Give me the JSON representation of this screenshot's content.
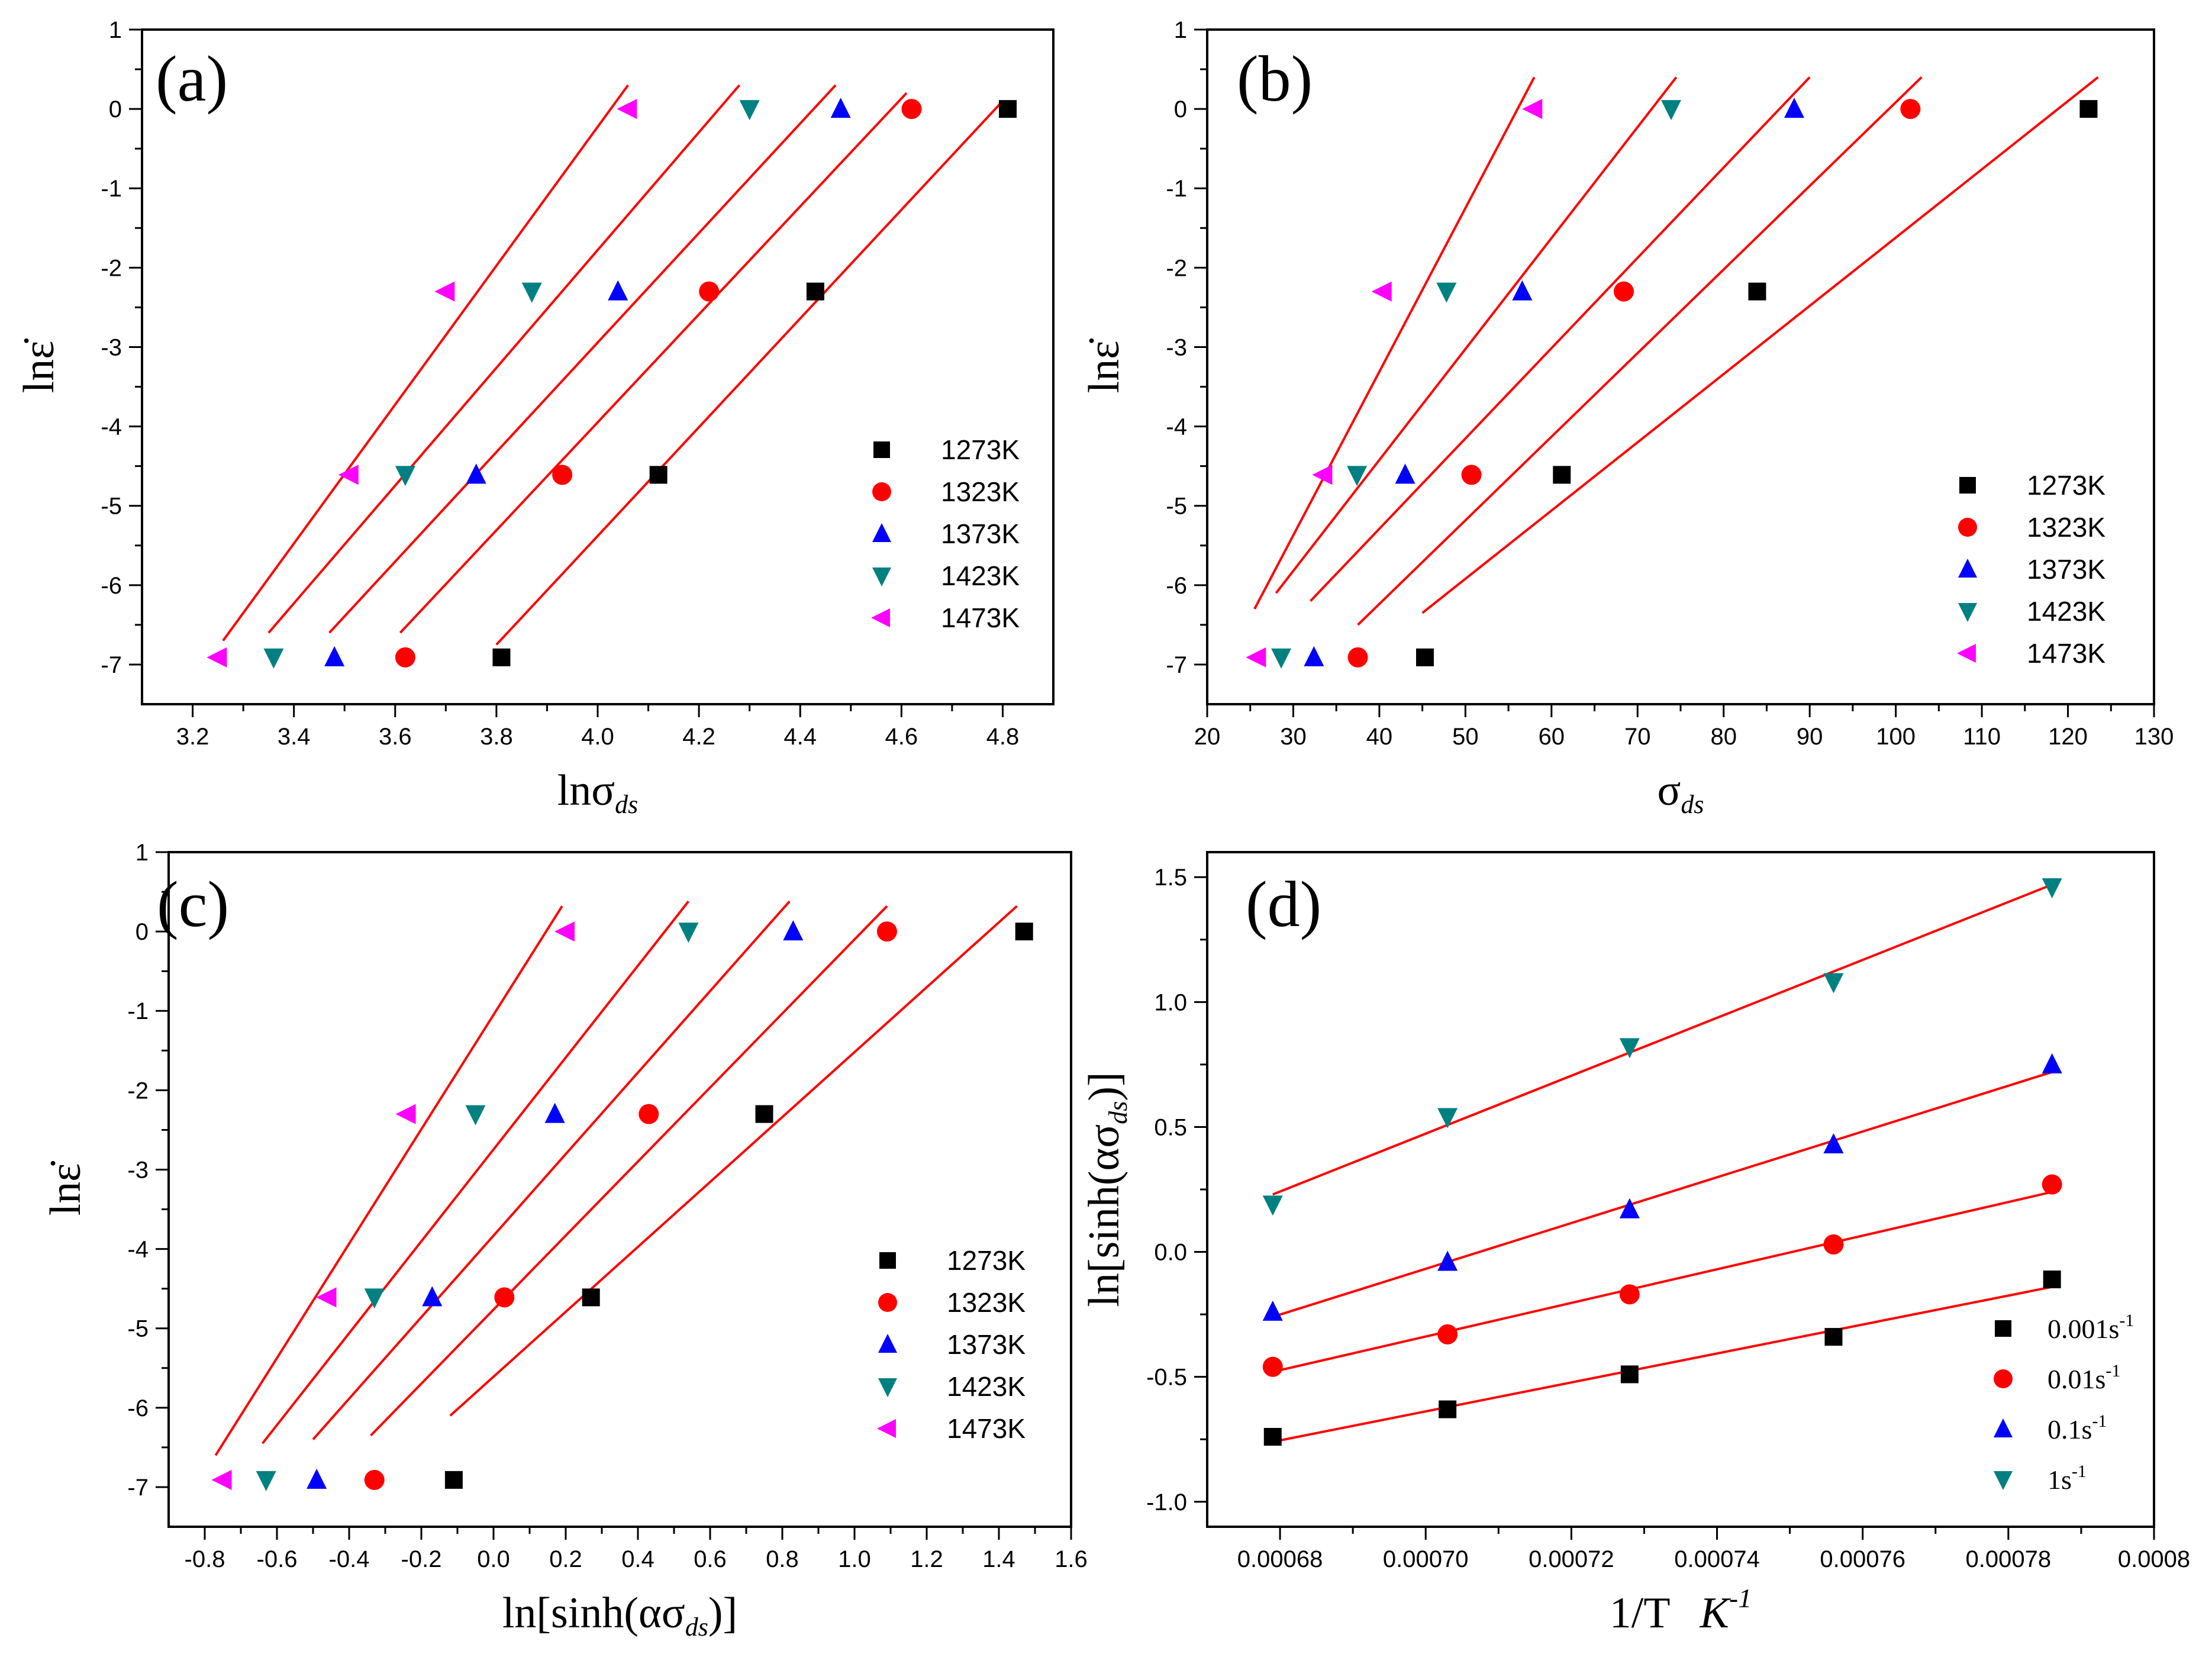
{
  "figure": {
    "colors": {
      "fit_line": "#ff0000",
      "1273K": "#000000",
      "1323K": "#ff0000",
      "1373K": "#0000ff",
      "1423K": "#008080",
      "1473K": "#ff00ff"
    }
  },
  "chart_data": [
    {
      "type": "scatter",
      "panel_label": "(a)",
      "xlabel": "lnσ",
      "xlabel_sub": "ds",
      "ylabel": "lnε̇",
      "xlim": [
        3.1,
        4.9
      ],
      "ylim": [
        -7.5,
        1
      ],
      "xticks": [
        3.2,
        3.4,
        3.6,
        3.8,
        4.0,
        4.2,
        4.4,
        4.6,
        4.8
      ],
      "xtick_labels": [
        "3.2",
        "3.4",
        "3.6",
        "3.8",
        "4.0",
        "4.2",
        "4.4",
        "4.6",
        "4.8"
      ],
      "yticks": [
        1,
        0,
        -1,
        -2,
        -3,
        -4,
        -5,
        -6,
        -7
      ],
      "ytick_labels": [
        "1",
        "0",
        "-1",
        "-2",
        "-3",
        "-4",
        "-5",
        "-6",
        "-7"
      ],
      "legend_position": "bottom-right",
      "series": [
        {
          "name": "1273K",
          "marker": "square",
          "color": "#000000",
          "x": [
            3.81,
            4.12,
            4.43,
            4.81
          ],
          "y": [
            -6.91,
            -4.61,
            -2.3,
            0.0
          ]
        },
        {
          "name": "1323K",
          "marker": "circle",
          "color": "#ff0000",
          "x": [
            3.62,
            3.93,
            4.22,
            4.62
          ],
          "y": [
            -6.91,
            -4.61,
            -2.3,
            0.0
          ]
        },
        {
          "name": "1373K",
          "marker": "triangle-up",
          "color": "#0000ff",
          "x": [
            3.48,
            3.76,
            4.04,
            4.48
          ],
          "y": [
            -6.91,
            -4.61,
            -2.3,
            0.0
          ]
        },
        {
          "name": "1423K",
          "marker": "triangle-down",
          "color": "#008080",
          "x": [
            3.36,
            3.62,
            3.87,
            4.3
          ],
          "y": [
            -6.91,
            -4.61,
            -2.3,
            0.0
          ]
        },
        {
          "name": "1473K",
          "marker": "triangle-left",
          "color": "#ff00ff",
          "x": [
            3.25,
            3.51,
            3.7,
            4.06
          ],
          "y": [
            -6.91,
            -4.61,
            -2.3,
            0.0
          ]
        }
      ],
      "fit_lines": [
        {
          "series": "1273K",
          "x": [
            3.8,
            4.8
          ],
          "y": [
            -6.75,
            0.1
          ]
        },
        {
          "series": "1323K",
          "x": [
            3.61,
            4.61
          ],
          "y": [
            -6.6,
            0.2
          ]
        },
        {
          "series": "1373K",
          "x": [
            3.47,
            4.47
          ],
          "y": [
            -6.6,
            0.3
          ]
        },
        {
          "series": "1423K",
          "x": [
            3.35,
            4.28
          ],
          "y": [
            -6.6,
            0.3
          ]
        },
        {
          "series": "1473K",
          "x": [
            3.26,
            4.06
          ],
          "y": [
            -6.7,
            0.3
          ]
        }
      ]
    },
    {
      "type": "scatter",
      "panel_label": "(b)",
      "xlabel": "σ",
      "xlabel_sub": "ds",
      "ylabel": "lnε̇",
      "xlim": [
        20,
        130
      ],
      "ylim": [
        -7.5,
        1
      ],
      "xticks": [
        20,
        30,
        40,
        50,
        60,
        70,
        80,
        90,
        100,
        110,
        120,
        130
      ],
      "xtick_labels": [
        "20",
        "30",
        "40",
        "50",
        "60",
        "70",
        "80",
        "90",
        "100",
        "110",
        "120",
        "130"
      ],
      "yticks": [
        1,
        0,
        -1,
        -2,
        -3,
        -4,
        -5,
        -6,
        -7
      ],
      "ytick_labels": [
        "1",
        "0",
        "-1",
        "-2",
        "-3",
        "-4",
        "-5",
        "-6",
        "-7"
      ],
      "legend_position": "bottom-right",
      "series": [
        {
          "name": "1273K",
          "marker": "square",
          "color": "#000000",
          "x": [
            45.3,
            61.2,
            83.9,
            122.4
          ],
          "y": [
            -6.91,
            -4.61,
            -2.3,
            0.0
          ]
        },
        {
          "name": "1323K",
          "marker": "circle",
          "color": "#ff0000",
          "x": [
            37.5,
            50.7,
            68.4,
            101.7
          ],
          "y": [
            -6.91,
            -4.61,
            -2.3,
            0.0
          ]
        },
        {
          "name": "1373K",
          "marker": "triangle-up",
          "color": "#0000ff",
          "x": [
            32.4,
            43.0,
            56.6,
            88.2
          ],
          "y": [
            -6.91,
            -4.61,
            -2.3,
            0.0
          ]
        },
        {
          "name": "1423K",
          "marker": "triangle-down",
          "color": "#008080",
          "x": [
            28.6,
            37.4,
            47.8,
            73.9
          ],
          "y": [
            -6.91,
            -4.61,
            -2.3,
            0.0
          ]
        },
        {
          "name": "1473K",
          "marker": "triangle-left",
          "color": "#ff00ff",
          "x": [
            25.8,
            33.5,
            40.4,
            57.9
          ],
          "y": [
            -6.91,
            -4.61,
            -2.3,
            0.0
          ]
        }
      ],
      "fit_lines": [
        {
          "series": "1273K",
          "x": [
            45.0,
            123.5
          ],
          "y": [
            -6.35,
            0.4
          ]
        },
        {
          "series": "1323K",
          "x": [
            37.5,
            103.0
          ],
          "y": [
            -6.5,
            0.4
          ]
        },
        {
          "name": "1373K",
          "series": "1373K",
          "x": [
            32.0,
            90.0
          ],
          "y": [
            -6.2,
            0.4
          ]
        },
        {
          "series": "1423K",
          "x": [
            28.0,
            74.5
          ],
          "y": [
            -6.1,
            0.4
          ]
        },
        {
          "series": "1473K",
          "x": [
            25.5,
            58.0
          ],
          "y": [
            -6.3,
            0.4
          ]
        }
      ]
    },
    {
      "type": "scatter",
      "panel_label": "(c)",
      "xlabel": "ln[sinh(ασ",
      "xlabel_sub": "ds",
      "xlabel_end": ")]",
      "ylabel": "lnε̇",
      "xlim": [
        -0.9,
        1.6
      ],
      "ylim": [
        -7.5,
        1
      ],
      "xticks": [
        -0.8,
        -0.6,
        -0.4,
        -0.2,
        0.0,
        0.2,
        0.4,
        0.6,
        0.8,
        1.0,
        1.2,
        1.4,
        1.6
      ],
      "xtick_labels": [
        "-0.8",
        "-0.6",
        "-0.4",
        "-0.2",
        "0.0",
        "0.2",
        "0.4",
        "0.6",
        "0.8",
        "1.0",
        "1.2",
        "1.4",
        "1.6"
      ],
      "yticks": [
        1,
        0,
        -1,
        -2,
        -3,
        -4,
        -5,
        -6,
        -7
      ],
      "ytick_labels": [
        "1",
        "0",
        "-1",
        "-2",
        "-3",
        "-4",
        "-5",
        "-6",
        "-7"
      ],
      "legend_position": "bottom-right",
      "series": [
        {
          "name": "1273K",
          "marker": "square",
          "color": "#000000",
          "x": [
            -0.11,
            0.27,
            0.75,
            1.47
          ],
          "y": [
            -6.91,
            -4.61,
            -2.3,
            0.0
          ]
        },
        {
          "name": "1323K",
          "marker": "circle",
          "color": "#ff0000",
          "x": [
            -0.33,
            0.03,
            0.43,
            1.09
          ],
          "y": [
            -6.91,
            -4.61,
            -2.3,
            0.0
          ]
        },
        {
          "name": "1373K",
          "marker": "triangle-up",
          "color": "#0000ff",
          "x": [
            -0.49,
            -0.17,
            0.17,
            0.83
          ],
          "y": [
            -6.91,
            -4.61,
            -2.3,
            0.0
          ]
        },
        {
          "name": "1423K",
          "marker": "triangle-down",
          "color": "#008080",
          "x": [
            -0.63,
            -0.33,
            -0.05,
            0.54
          ],
          "y": [
            -6.91,
            -4.61,
            -2.3,
            0.0
          ]
        },
        {
          "name": "1473K",
          "marker": "triangle-left",
          "color": "#ff00ff",
          "x": [
            -0.75,
            -0.46,
            -0.24,
            0.2
          ],
          "y": [
            -6.91,
            -4.61,
            -2.3,
            0.0
          ]
        }
      ],
      "fit_lines": [
        {
          "series": "1273K",
          "x": [
            -0.12,
            1.45
          ],
          "y": [
            -6.1,
            0.32
          ]
        },
        {
          "series": "1323K",
          "x": [
            -0.34,
            1.09
          ],
          "y": [
            -6.35,
            0.32
          ]
        },
        {
          "series": "1373K",
          "x": [
            -0.5,
            0.82
          ],
          "y": [
            -6.4,
            0.38
          ]
        },
        {
          "series": "1423K",
          "x": [
            -0.64,
            0.54
          ],
          "y": [
            -6.45,
            0.38
          ]
        },
        {
          "series": "1473K",
          "x": [
            -0.77,
            0.19
          ],
          "y": [
            -6.6,
            0.32
          ]
        }
      ]
    },
    {
      "type": "scatter",
      "panel_label": "(d)",
      "xlabel": "1/T",
      "xlabel_unit": "K",
      "xlabel_unit_sup": "-1",
      "ylabel": "ln[sinh(ασ",
      "ylabel_sub": "ds",
      "ylabel_end": ")]",
      "xlim": [
        0.00067,
        0.0008
      ],
      "ylim": [
        -1.1,
        1.6
      ],
      "xticks": [
        0.00068,
        0.0007,
        0.00072,
        0.00074,
        0.00076,
        0.00078,
        0.0008
      ],
      "xtick_labels": [
        "0.00068",
        "0.00070",
        "0.00072",
        "0.00074",
        "0.00076",
        "0.00078",
        "0.0008"
      ],
      "yticks": [
        1.5,
        1.0,
        0.5,
        0.0,
        -0.5,
        -1.0
      ],
      "ytick_labels": [
        "1.5",
        "1.0",
        "0.5",
        "0.0",
        "-0.5",
        "-1.0"
      ],
      "legend_position": "bottom-right",
      "series": [
        {
          "name": "0.001s",
          "name_sup": "-1",
          "marker": "square",
          "color": "#000000",
          "x": [
            0.000679,
            0.000703,
            0.000728,
            0.000756,
            0.000786
          ],
          "y": [
            -0.74,
            -0.63,
            -0.49,
            -0.34,
            -0.11
          ]
        },
        {
          "name": "0.01s",
          "name_sup": "-1",
          "marker": "circle",
          "color": "#ff0000",
          "x": [
            0.000679,
            0.000703,
            0.000728,
            0.000756,
            0.000786
          ],
          "y": [
            -0.46,
            -0.33,
            -0.17,
            0.03,
            0.27
          ]
        },
        {
          "name": "0.1s",
          "name_sup": "-1",
          "marker": "triangle-up",
          "color": "#0000ff",
          "x": [
            0.000679,
            0.000703,
            0.000728,
            0.000756,
            0.000786
          ],
          "y": [
            -0.24,
            -0.04,
            0.17,
            0.43,
            0.75
          ]
        },
        {
          "name": "1s",
          "name_sup": "-1",
          "marker": "triangle-down",
          "color": "#008080",
          "x": [
            0.000679,
            0.000703,
            0.000728,
            0.000756,
            0.000786
          ],
          "y": [
            0.19,
            0.54,
            0.82,
            1.08,
            1.46
          ]
        }
      ],
      "fit_lines": [
        {
          "series": "0.001s",
          "x": [
            0.000679,
            0.000786
          ],
          "y": [
            -0.76,
            -0.14
          ]
        },
        {
          "series": "0.01s",
          "x": [
            0.000679,
            0.000786
          ],
          "y": [
            -0.48,
            0.24
          ]
        },
        {
          "series": "0.1s",
          "x": [
            0.000679,
            0.000786
          ],
          "y": [
            -0.26,
            0.72
          ]
        },
        {
          "series": "1s",
          "x": [
            0.000679,
            0.000786
          ],
          "y": [
            0.23,
            1.47
          ]
        }
      ]
    }
  ]
}
